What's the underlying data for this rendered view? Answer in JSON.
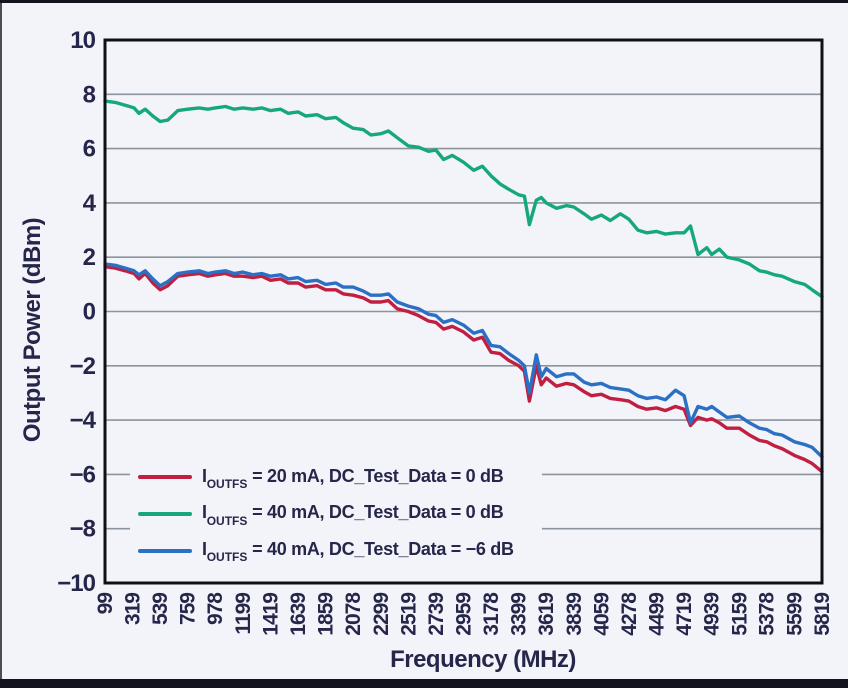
{
  "chart_data": {
    "type": "line",
    "title": "",
    "xlabel": "Frequency (MHz)",
    "ylabel": "Output Power (dBm)",
    "xlim": [
      99,
      5819
    ],
    "ylim": [
      -10,
      10
    ],
    "grid": true,
    "legend_position": "inside lower left",
    "yticks": [
      10,
      8,
      6,
      4,
      2,
      0,
      -2,
      -4,
      -6,
      -8,
      -10
    ],
    "xticks": [
      99,
      319,
      539,
      759,
      978,
      1199,
      1419,
      1639,
      1859,
      2078,
      2299,
      2519,
      2739,
      2959,
      3178,
      3399,
      3619,
      3839,
      4059,
      4278,
      4499,
      4719,
      4939,
      5159,
      5378,
      5599,
      5819
    ],
    "colors": {
      "background": "#f2f4f9",
      "grid": "#8b939e",
      "frame": "#0f0f1a",
      "text": "#26264a"
    },
    "series": [
      {
        "label": {
          "prefix": "I",
          "sub": "OUTFS",
          "rest": " = 20 mA, DC_Test_Data = 0 dB"
        },
        "color": "#c11f41",
        "points": [
          [
            99,
            1.65
          ],
          [
            180,
            1.6
          ],
          [
            260,
            1.5
          ],
          [
            330,
            1.4
          ],
          [
            370,
            1.2
          ],
          [
            420,
            1.4
          ],
          [
            480,
            1.05
          ],
          [
            539,
            0.8
          ],
          [
            600,
            0.95
          ],
          [
            680,
            1.3
          ],
          [
            759,
            1.35
          ],
          [
            850,
            1.4
          ],
          [
            920,
            1.3
          ],
          [
            978,
            1.35
          ],
          [
            1060,
            1.4
          ],
          [
            1130,
            1.3
          ],
          [
            1199,
            1.3
          ],
          [
            1280,
            1.25
          ],
          [
            1350,
            1.3
          ],
          [
            1419,
            1.15
          ],
          [
            1500,
            1.2
          ],
          [
            1560,
            1.05
          ],
          [
            1639,
            1.05
          ],
          [
            1700,
            0.9
          ],
          [
            1790,
            0.95
          ],
          [
            1859,
            0.8
          ],
          [
            1940,
            0.8
          ],
          [
            2000,
            0.65
          ],
          [
            2078,
            0.6
          ],
          [
            2160,
            0.5
          ],
          [
            2220,
            0.35
          ],
          [
            2299,
            0.35
          ],
          [
            2360,
            0.4
          ],
          [
            2430,
            0.1
          ],
          [
            2519,
            0.0
          ],
          [
            2600,
            -0.15
          ],
          [
            2680,
            -0.35
          ],
          [
            2739,
            -0.4
          ],
          [
            2800,
            -0.65
          ],
          [
            2870,
            -0.55
          ],
          [
            2959,
            -0.75
          ],
          [
            3040,
            -1.05
          ],
          [
            3110,
            -0.95
          ],
          [
            3178,
            -1.5
          ],
          [
            3250,
            -1.55
          ],
          [
            3320,
            -1.8
          ],
          [
            3399,
            -2.0
          ],
          [
            3445,
            -2.2
          ],
          [
            3485,
            -3.3
          ],
          [
            3540,
            -2.0
          ],
          [
            3580,
            -2.7
          ],
          [
            3619,
            -2.45
          ],
          [
            3700,
            -2.75
          ],
          [
            3780,
            -2.65
          ],
          [
            3839,
            -2.7
          ],
          [
            3920,
            -2.95
          ],
          [
            3980,
            -3.1
          ],
          [
            4059,
            -3.05
          ],
          [
            4130,
            -3.2
          ],
          [
            4210,
            -3.25
          ],
          [
            4278,
            -3.3
          ],
          [
            4350,
            -3.5
          ],
          [
            4420,
            -3.6
          ],
          [
            4499,
            -3.55
          ],
          [
            4570,
            -3.65
          ],
          [
            4650,
            -3.5
          ],
          [
            4719,
            -3.6
          ],
          [
            4770,
            -4.2
          ],
          [
            4830,
            -3.9
          ],
          [
            4900,
            -4.0
          ],
          [
            4939,
            -3.95
          ],
          [
            5000,
            -4.1
          ],
          [
            5060,
            -4.3
          ],
          [
            5159,
            -4.3
          ],
          [
            5240,
            -4.55
          ],
          [
            5320,
            -4.75
          ],
          [
            5378,
            -4.8
          ],
          [
            5440,
            -4.95
          ],
          [
            5500,
            -5.05
          ],
          [
            5599,
            -5.3
          ],
          [
            5680,
            -5.45
          ],
          [
            5740,
            -5.6
          ],
          [
            5819,
            -5.9
          ]
        ]
      },
      {
        "label": {
          "prefix": "I",
          "sub": "OUTFS",
          "rest": " = 40 mA, DC_Test_Data = 0 dB"
        },
        "color": "#16a87c",
        "points": [
          [
            99,
            7.75
          ],
          [
            180,
            7.7
          ],
          [
            260,
            7.6
          ],
          [
            330,
            7.5
          ],
          [
            370,
            7.3
          ],
          [
            420,
            7.45
          ],
          [
            480,
            7.2
          ],
          [
            539,
            7.0
          ],
          [
            600,
            7.05
          ],
          [
            680,
            7.4
          ],
          [
            759,
            7.45
          ],
          [
            850,
            7.5
          ],
          [
            920,
            7.45
          ],
          [
            978,
            7.5
          ],
          [
            1060,
            7.55
          ],
          [
            1130,
            7.45
          ],
          [
            1199,
            7.5
          ],
          [
            1280,
            7.45
          ],
          [
            1350,
            7.5
          ],
          [
            1419,
            7.4
          ],
          [
            1500,
            7.45
          ],
          [
            1560,
            7.3
          ],
          [
            1639,
            7.35
          ],
          [
            1700,
            7.2
          ],
          [
            1790,
            7.25
          ],
          [
            1859,
            7.1
          ],
          [
            1940,
            7.15
          ],
          [
            2000,
            6.95
          ],
          [
            2078,
            6.75
          ],
          [
            2160,
            6.7
          ],
          [
            2220,
            6.5
          ],
          [
            2299,
            6.55
          ],
          [
            2360,
            6.65
          ],
          [
            2430,
            6.4
          ],
          [
            2519,
            6.1
          ],
          [
            2600,
            6.05
          ],
          [
            2680,
            5.9
          ],
          [
            2739,
            5.95
          ],
          [
            2800,
            5.6
          ],
          [
            2870,
            5.75
          ],
          [
            2959,
            5.5
          ],
          [
            3040,
            5.2
          ],
          [
            3110,
            5.35
          ],
          [
            3178,
            5.0
          ],
          [
            3250,
            4.7
          ],
          [
            3320,
            4.5
          ],
          [
            3399,
            4.3
          ],
          [
            3445,
            4.25
          ],
          [
            3485,
            3.2
          ],
          [
            3540,
            4.1
          ],
          [
            3580,
            4.2
          ],
          [
            3619,
            4.0
          ],
          [
            3700,
            3.8
          ],
          [
            3780,
            3.9
          ],
          [
            3839,
            3.85
          ],
          [
            3920,
            3.6
          ],
          [
            3980,
            3.4
          ],
          [
            4059,
            3.55
          ],
          [
            4130,
            3.35
          ],
          [
            4210,
            3.6
          ],
          [
            4278,
            3.4
          ],
          [
            4350,
            3.0
          ],
          [
            4420,
            2.9
          ],
          [
            4499,
            2.95
          ],
          [
            4570,
            2.85
          ],
          [
            4650,
            2.9
          ],
          [
            4719,
            2.9
          ],
          [
            4770,
            3.15
          ],
          [
            4830,
            2.1
          ],
          [
            4900,
            2.35
          ],
          [
            4939,
            2.1
          ],
          [
            5000,
            2.3
          ],
          [
            5060,
            2.0
          ],
          [
            5159,
            1.9
          ],
          [
            5240,
            1.75
          ],
          [
            5320,
            1.5
          ],
          [
            5378,
            1.45
          ],
          [
            5440,
            1.35
          ],
          [
            5500,
            1.3
          ],
          [
            5599,
            1.1
          ],
          [
            5680,
            1.0
          ],
          [
            5740,
            0.8
          ],
          [
            5819,
            0.55
          ]
        ]
      },
      {
        "label": {
          "prefix": "I",
          "sub": "OUTFS",
          "rest": " = 40 mA, DC_Test_Data = −6 dB"
        },
        "color": "#2b70c4",
        "points": [
          [
            99,
            1.75
          ],
          [
            180,
            1.7
          ],
          [
            260,
            1.6
          ],
          [
            330,
            1.5
          ],
          [
            370,
            1.35
          ],
          [
            420,
            1.5
          ],
          [
            480,
            1.2
          ],
          [
            539,
            0.95
          ],
          [
            600,
            1.1
          ],
          [
            680,
            1.4
          ],
          [
            759,
            1.45
          ],
          [
            850,
            1.5
          ],
          [
            920,
            1.4
          ],
          [
            978,
            1.45
          ],
          [
            1060,
            1.5
          ],
          [
            1130,
            1.4
          ],
          [
            1199,
            1.45
          ],
          [
            1280,
            1.35
          ],
          [
            1350,
            1.4
          ],
          [
            1419,
            1.3
          ],
          [
            1500,
            1.35
          ],
          [
            1560,
            1.2
          ],
          [
            1639,
            1.25
          ],
          [
            1700,
            1.1
          ],
          [
            1790,
            1.15
          ],
          [
            1859,
            1.0
          ],
          [
            1940,
            1.05
          ],
          [
            2000,
            0.9
          ],
          [
            2078,
            0.9
          ],
          [
            2160,
            0.75
          ],
          [
            2220,
            0.6
          ],
          [
            2299,
            0.6
          ],
          [
            2360,
            0.65
          ],
          [
            2430,
            0.35
          ],
          [
            2519,
            0.2
          ],
          [
            2600,
            0.1
          ],
          [
            2680,
            -0.1
          ],
          [
            2739,
            -0.15
          ],
          [
            2800,
            -0.4
          ],
          [
            2870,
            -0.3
          ],
          [
            2959,
            -0.5
          ],
          [
            3040,
            -0.8
          ],
          [
            3110,
            -0.7
          ],
          [
            3178,
            -1.25
          ],
          [
            3250,
            -1.3
          ],
          [
            3320,
            -1.55
          ],
          [
            3399,
            -1.8
          ],
          [
            3445,
            -2.0
          ],
          [
            3485,
            -3.0
          ],
          [
            3540,
            -1.6
          ],
          [
            3580,
            -2.4
          ],
          [
            3619,
            -2.1
          ],
          [
            3700,
            -2.4
          ],
          [
            3780,
            -2.3
          ],
          [
            3839,
            -2.3
          ],
          [
            3920,
            -2.6
          ],
          [
            3980,
            -2.7
          ],
          [
            4059,
            -2.65
          ],
          [
            4130,
            -2.8
          ],
          [
            4210,
            -2.85
          ],
          [
            4278,
            -2.9
          ],
          [
            4350,
            -3.1
          ],
          [
            4420,
            -3.2
          ],
          [
            4499,
            -3.15
          ],
          [
            4570,
            -3.25
          ],
          [
            4650,
            -2.9
          ],
          [
            4719,
            -3.1
          ],
          [
            4770,
            -4.1
          ],
          [
            4830,
            -3.5
          ],
          [
            4900,
            -3.6
          ],
          [
            4939,
            -3.5
          ],
          [
            5000,
            -3.7
          ],
          [
            5060,
            -3.9
          ],
          [
            5159,
            -3.85
          ],
          [
            5240,
            -4.1
          ],
          [
            5320,
            -4.3
          ],
          [
            5378,
            -4.35
          ],
          [
            5440,
            -4.5
          ],
          [
            5500,
            -4.55
          ],
          [
            5599,
            -4.8
          ],
          [
            5680,
            -4.9
          ],
          [
            5740,
            -5.0
          ],
          [
            5819,
            -5.35
          ]
        ]
      }
    ],
    "legend_draw_order": [
      0,
      1,
      2
    ],
    "plot_draw_order": [
      0,
      1,
      2
    ]
  }
}
